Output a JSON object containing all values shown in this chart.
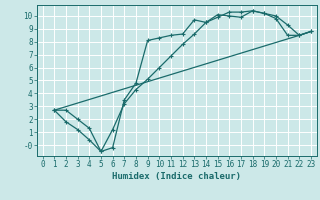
{
  "title": "",
  "xlabel": "Humidex (Indice chaleur)",
  "bg_color": "#cce8e8",
  "grid_color": "#ffffff",
  "line_color": "#1a6b6b",
  "marker": "+",
  "xlim": [
    -0.5,
    23.5
  ],
  "ylim": [
    -0.85,
    10.85
  ],
  "xticks": [
    0,
    1,
    2,
    3,
    4,
    5,
    6,
    7,
    8,
    9,
    10,
    11,
    12,
    13,
    14,
    15,
    16,
    17,
    18,
    19,
    20,
    21,
    22,
    23
  ],
  "yticks": [
    0,
    1,
    2,
    3,
    4,
    5,
    6,
    7,
    8,
    9,
    10
  ],
  "line1_x": [
    1,
    2,
    3,
    4,
    5,
    6,
    7,
    8,
    9,
    10,
    11,
    12,
    13,
    14,
    15,
    16,
    17,
    18,
    19,
    20,
    21,
    22,
    23
  ],
  "line1_y": [
    2.7,
    2.7,
    2.0,
    1.3,
    -0.5,
    -0.2,
    3.5,
    4.8,
    8.1,
    8.3,
    8.5,
    8.6,
    9.7,
    9.5,
    10.1,
    10.0,
    9.9,
    10.4,
    10.2,
    10.0,
    9.3,
    8.5,
    8.8
  ],
  "line2_x": [
    1,
    2,
    3,
    4,
    5,
    6,
    7,
    8,
    9,
    10,
    11,
    12,
    13,
    14,
    15,
    16,
    17,
    18,
    19,
    20,
    21,
    22,
    23
  ],
  "line2_y": [
    2.7,
    1.8,
    1.2,
    0.4,
    -0.5,
    1.2,
    3.2,
    4.3,
    5.1,
    6.0,
    6.9,
    7.8,
    8.6,
    9.5,
    9.9,
    10.3,
    10.3,
    10.4,
    10.2,
    9.8,
    8.5,
    8.5,
    8.8
  ],
  "line3_x": [
    1,
    22,
    23
  ],
  "line3_y": [
    2.7,
    8.5,
    8.8
  ],
  "label_fontsize": 5.5,
  "xlabel_fontsize": 6.5,
  "linewidth": 0.9,
  "markersize": 3.5
}
